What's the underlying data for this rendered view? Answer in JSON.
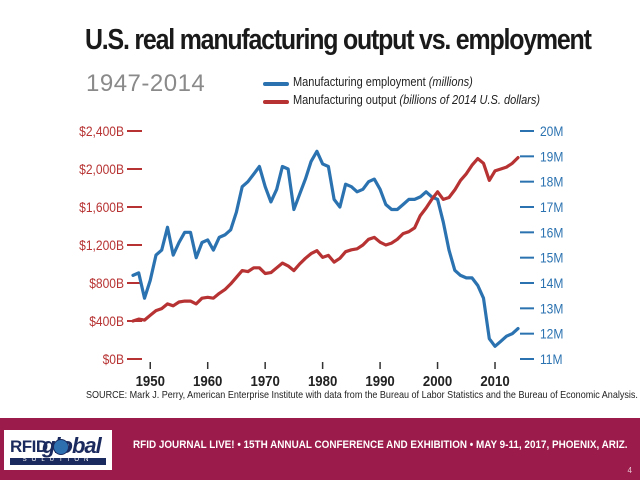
{
  "slide": {
    "title": "U.S. real manufacturing output vs. employment",
    "subtitle": "1947-2014",
    "source": "SOURCE: Mark J. Perry, American Enterprise Institute with data from the Bureau of Labor Statistics and the Bureau of Economic Analysis.",
    "page_number": "4"
  },
  "legend": {
    "employment_label": "Manufacturing employment",
    "employment_unit": "(millions)",
    "output_label": "Manufacturing output",
    "output_unit": "(billions of 2014 U.S. dollars)"
  },
  "footer": {
    "logo_rfid": "RFID",
    "logo_global": "global",
    "logo_solution": "SOLUTION",
    "text": "RFID JOURNAL LIVE! • 15TH ANNUAL CONFERENCE AND EXHIBITION • MAY 9-11, 2017, PHOENIX, ARIZ."
  },
  "colors": {
    "employment": "#2b72b0",
    "output": "#b73232",
    "left_axis": "#b73232",
    "right_axis": "#2b72b0",
    "footer_bg": "#9b1b4a"
  },
  "chart_data": {
    "type": "line",
    "x_ticks": [
      1950,
      1960,
      1970,
      1980,
      1990,
      2000,
      2010
    ],
    "xlim": [
      1947,
      2014
    ],
    "y_left": {
      "ticks": [
        "$0B",
        "$400B",
        "$800B",
        "$1,200B",
        "$1,600B",
        "$2,000B",
        "$2,400B"
      ],
      "tick_values": [
        0,
        400,
        800,
        1200,
        1600,
        2000,
        2400
      ],
      "ylim": [
        0,
        2400
      ]
    },
    "y_right": {
      "ticks": [
        "11M",
        "12M",
        "13M",
        "14M",
        "15M",
        "16M",
        "17M",
        "18M",
        "19M",
        "20M"
      ],
      "tick_values": [
        11,
        12,
        13,
        14,
        15,
        16,
        17,
        18,
        19,
        20
      ],
      "ylim": [
        11,
        20
      ]
    },
    "series": [
      {
        "name": "Manufacturing employment (millions)",
        "axis": "right",
        "color": "#2b72b0",
        "x": [
          1947,
          1948,
          1949,
          1950,
          1951,
          1952,
          1953,
          1954,
          1955,
          1956,
          1957,
          1958,
          1959,
          1960,
          1961,
          1962,
          1963,
          1964,
          1965,
          1966,
          1967,
          1968,
          1969,
          1970,
          1971,
          1972,
          1973,
          1974,
          1975,
          1976,
          1977,
          1978,
          1979,
          1980,
          1981,
          1982,
          1983,
          1984,
          1985,
          1986,
          1987,
          1988,
          1989,
          1990,
          1991,
          1992,
          1993,
          1994,
          1995,
          1996,
          1997,
          1998,
          1999,
          2000,
          2001,
          2002,
          2003,
          2004,
          2005,
          2006,
          2007,
          2008,
          2009,
          2010,
          2011,
          2012,
          2013,
          2014
        ],
        "values": [
          14.3,
          14.4,
          13.4,
          14.1,
          15.1,
          15.3,
          16.2,
          15.1,
          15.6,
          16.0,
          16.0,
          15.0,
          15.6,
          15.7,
          15.3,
          15.8,
          15.9,
          16.1,
          16.8,
          17.8,
          18.0,
          18.3,
          18.6,
          17.8,
          17.2,
          17.7,
          18.6,
          18.5,
          16.9,
          17.5,
          18.1,
          18.8,
          19.2,
          18.7,
          18.6,
          17.3,
          17.0,
          17.9,
          17.8,
          17.6,
          17.7,
          18.0,
          18.1,
          17.7,
          17.1,
          16.9,
          16.9,
          17.1,
          17.3,
          17.3,
          17.4,
          17.6,
          17.4,
          17.3,
          16.4,
          15.3,
          14.5,
          14.3,
          14.2,
          14.2,
          13.9,
          13.4,
          11.8,
          11.5,
          11.7,
          11.9,
          12.0,
          12.2
        ]
      },
      {
        "name": "Manufacturing output (billions of 2014 U.S. dollars)",
        "axis": "left",
        "color": "#b73232",
        "x": [
          1947,
          1948,
          1949,
          1950,
          1951,
          1952,
          1953,
          1954,
          1955,
          1956,
          1957,
          1958,
          1959,
          1960,
          1961,
          1962,
          1963,
          1964,
          1965,
          1966,
          1967,
          1968,
          1969,
          1970,
          1971,
          1972,
          1973,
          1974,
          1975,
          1976,
          1977,
          1978,
          1979,
          1980,
          1981,
          1982,
          1983,
          1984,
          1985,
          1986,
          1987,
          1988,
          1989,
          1990,
          1991,
          1992,
          1993,
          1994,
          1995,
          1996,
          1997,
          1998,
          1999,
          2000,
          2001,
          2002,
          2003,
          2004,
          2005,
          2006,
          2007,
          2008,
          2009,
          2010,
          2011,
          2012,
          2013,
          2014
        ],
        "values": [
          400,
          420,
          410,
          460,
          510,
          530,
          580,
          560,
          600,
          610,
          610,
          580,
          640,
          650,
          640,
          690,
          730,
          790,
          860,
          930,
          920,
          960,
          960,
          900,
          910,
          960,
          1010,
          980,
          930,
          1000,
          1060,
          1110,
          1140,
          1070,
          1090,
          1020,
          1060,
          1130,
          1150,
          1160,
          1200,
          1260,
          1280,
          1230,
          1200,
          1220,
          1260,
          1320,
          1340,
          1380,
          1510,
          1590,
          1680,
          1760,
          1680,
          1700,
          1780,
          1880,
          1950,
          2040,
          2110,
          2060,
          1880,
          1980,
          2000,
          2020,
          2060,
          2120
        ]
      }
    ]
  }
}
